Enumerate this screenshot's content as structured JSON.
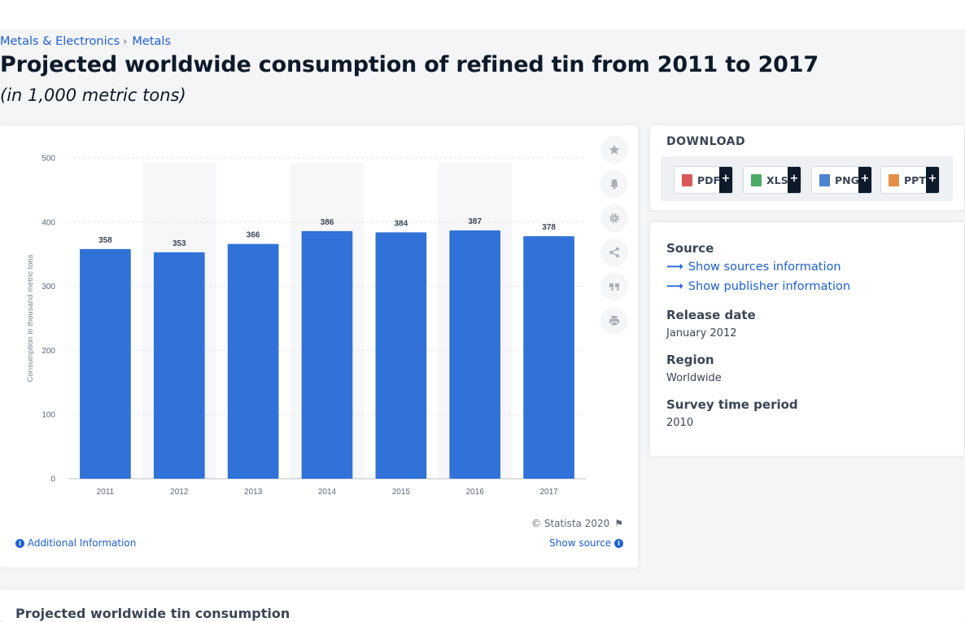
{
  "breadcrumb": {
    "items": [
      "Metals & Electronics",
      "Metals"
    ],
    "separator": "›"
  },
  "title": "Projected worldwide consumption of refined tin from 2011 to 2017",
  "subtitle": "(in 1,000 metric tons)",
  "colors": {
    "bar": "#3172d9",
    "link": "#1f5fd6",
    "text": "#0d1a2a",
    "muted": "#5d6778"
  },
  "chart_data": {
    "type": "bar",
    "categories": [
      "2011",
      "2012",
      "2013",
      "2014",
      "2015",
      "2016",
      "2017"
    ],
    "values": [
      358,
      353,
      366,
      386,
      384,
      387,
      378
    ],
    "title": "",
    "xlabel": "",
    "ylabel": "Consumption in thousand metric tons",
    "ylim": [
      0,
      500
    ],
    "yticks": [
      0,
      100,
      200,
      300,
      400,
      500
    ],
    "data_labels": true,
    "grid": true,
    "legend": "none"
  },
  "chart_tools": [
    {
      "name": "favorite-star-icon"
    },
    {
      "name": "notification-bell-icon"
    },
    {
      "name": "settings-gear-icon"
    },
    {
      "name": "share-icon"
    },
    {
      "name": "cite-quote-icon"
    },
    {
      "name": "print-icon"
    }
  ],
  "chart_footer": {
    "copyright": "© Statista 2020",
    "additional_info": "Additional Information",
    "show_source": "Show source"
  },
  "download": {
    "title": "DOWNLOAD",
    "buttons": [
      {
        "label": "PDF",
        "plus": "+",
        "color": "#d23c3c"
      },
      {
        "label": "XLS",
        "plus": "+",
        "color": "#2e9b4a"
      },
      {
        "label": "PNG",
        "plus": "+",
        "color": "#2d6fc7"
      },
      {
        "label": "PPT",
        "plus": "+",
        "color": "#e07b2a"
      }
    ]
  },
  "source_panel": {
    "source_heading": "Source",
    "show_sources": "Show sources information",
    "show_publisher": "Show publisher information",
    "release_date_heading": "Release date",
    "release_date": "January 2012",
    "region_heading": "Region",
    "region": "Worldwide",
    "survey_period_heading": "Survey time period",
    "survey_period": "2010"
  },
  "bottom_title": "Projected worldwide tin consumption"
}
